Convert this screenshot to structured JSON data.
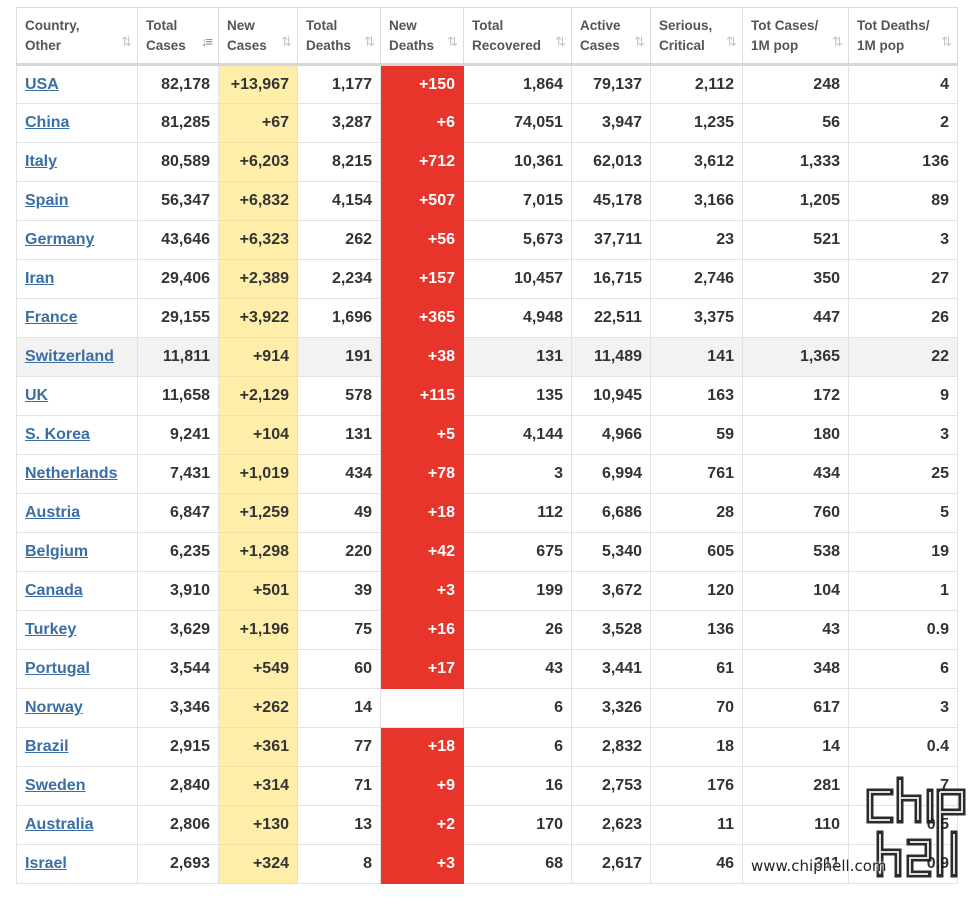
{
  "headers": [
    {
      "line1": "Country,",
      "line2": "Other",
      "sort": "none"
    },
    {
      "line1": "Total",
      "line2": "Cases",
      "sort": "active"
    },
    {
      "line1": "New",
      "line2": "Cases",
      "sort": "none"
    },
    {
      "line1": "Total",
      "line2": "Deaths",
      "sort": "none"
    },
    {
      "line1": "New",
      "line2": "Deaths",
      "sort": "none"
    },
    {
      "line1": "Total",
      "line2": "Recovered",
      "sort": "none"
    },
    {
      "line1": "Active",
      "line2": "Cases",
      "sort": "none"
    },
    {
      "line1": "Serious,",
      "line2": "Critical",
      "sort": "none"
    },
    {
      "line1": "Tot Cases/",
      "line2": "1M pop",
      "sort": "none"
    },
    {
      "line1": "Tot Deaths/",
      "line2": "1M pop",
      "sort": "none"
    }
  ],
  "rows": [
    {
      "country": "USA",
      "total_cases": "82,178",
      "new_cases": "+13,967",
      "total_deaths": "1,177",
      "new_deaths": "+150",
      "total_recovered": "1,864",
      "active_cases": "79,137",
      "serious_critical": "2,112",
      "cases_per_1m": "248",
      "deaths_per_1m": "4"
    },
    {
      "country": "China",
      "total_cases": "81,285",
      "new_cases": "+67",
      "total_deaths": "3,287",
      "new_deaths": "+6",
      "total_recovered": "74,051",
      "active_cases": "3,947",
      "serious_critical": "1,235",
      "cases_per_1m": "56",
      "deaths_per_1m": "2"
    },
    {
      "country": "Italy",
      "total_cases": "80,589",
      "new_cases": "+6,203",
      "total_deaths": "8,215",
      "new_deaths": "+712",
      "total_recovered": "10,361",
      "active_cases": "62,013",
      "serious_critical": "3,612",
      "cases_per_1m": "1,333",
      "deaths_per_1m": "136"
    },
    {
      "country": "Spain",
      "total_cases": "56,347",
      "new_cases": "+6,832",
      "total_deaths": "4,154",
      "new_deaths": "+507",
      "total_recovered": "7,015",
      "active_cases": "45,178",
      "serious_critical": "3,166",
      "cases_per_1m": "1,205",
      "deaths_per_1m": "89"
    },
    {
      "country": "Germany",
      "total_cases": "43,646",
      "new_cases": "+6,323",
      "total_deaths": "262",
      "new_deaths": "+56",
      "total_recovered": "5,673",
      "active_cases": "37,711",
      "serious_critical": "23",
      "cases_per_1m": "521",
      "deaths_per_1m": "3"
    },
    {
      "country": "Iran",
      "total_cases": "29,406",
      "new_cases": "+2,389",
      "total_deaths": "2,234",
      "new_deaths": "+157",
      "total_recovered": "10,457",
      "active_cases": "16,715",
      "serious_critical": "2,746",
      "cases_per_1m": "350",
      "deaths_per_1m": "27"
    },
    {
      "country": "France",
      "total_cases": "29,155",
      "new_cases": "+3,922",
      "total_deaths": "1,696",
      "new_deaths": "+365",
      "total_recovered": "4,948",
      "active_cases": "22,511",
      "serious_critical": "3,375",
      "cases_per_1m": "447",
      "deaths_per_1m": "26"
    },
    {
      "country": "Switzerland",
      "total_cases": "11,811",
      "new_cases": "+914",
      "total_deaths": "191",
      "new_deaths": "+38",
      "total_recovered": "131",
      "active_cases": "11,489",
      "serious_critical": "141",
      "cases_per_1m": "1,365",
      "deaths_per_1m": "22",
      "highlight": true
    },
    {
      "country": "UK",
      "total_cases": "11,658",
      "new_cases": "+2,129",
      "total_deaths": "578",
      "new_deaths": "+115",
      "total_recovered": "135",
      "active_cases": "10,945",
      "serious_critical": "163",
      "cases_per_1m": "172",
      "deaths_per_1m": "9"
    },
    {
      "country": "S. Korea",
      "total_cases": "9,241",
      "new_cases": "+104",
      "total_deaths": "131",
      "new_deaths": "+5",
      "total_recovered": "4,144",
      "active_cases": "4,966",
      "serious_critical": "59",
      "cases_per_1m": "180",
      "deaths_per_1m": "3"
    },
    {
      "country": "Netherlands",
      "total_cases": "7,431",
      "new_cases": "+1,019",
      "total_deaths": "434",
      "new_deaths": "+78",
      "total_recovered": "3",
      "active_cases": "6,994",
      "serious_critical": "761",
      "cases_per_1m": "434",
      "deaths_per_1m": "25"
    },
    {
      "country": "Austria",
      "total_cases": "6,847",
      "new_cases": "+1,259",
      "total_deaths": "49",
      "new_deaths": "+18",
      "total_recovered": "112",
      "active_cases": "6,686",
      "serious_critical": "28",
      "cases_per_1m": "760",
      "deaths_per_1m": "5"
    },
    {
      "country": "Belgium",
      "total_cases": "6,235",
      "new_cases": "+1,298",
      "total_deaths": "220",
      "new_deaths": "+42",
      "total_recovered": "675",
      "active_cases": "5,340",
      "serious_critical": "605",
      "cases_per_1m": "538",
      "deaths_per_1m": "19"
    },
    {
      "country": "Canada",
      "total_cases": "3,910",
      "new_cases": "+501",
      "total_deaths": "39",
      "new_deaths": "+3",
      "total_recovered": "199",
      "active_cases": "3,672",
      "serious_critical": "120",
      "cases_per_1m": "104",
      "deaths_per_1m": "1"
    },
    {
      "country": "Turkey",
      "total_cases": "3,629",
      "new_cases": "+1,196",
      "total_deaths": "75",
      "new_deaths": "+16",
      "total_recovered": "26",
      "active_cases": "3,528",
      "serious_critical": "136",
      "cases_per_1m": "43",
      "deaths_per_1m": "0.9"
    },
    {
      "country": "Portugal",
      "total_cases": "3,544",
      "new_cases": "+549",
      "total_deaths": "60",
      "new_deaths": "+17",
      "total_recovered": "43",
      "active_cases": "3,441",
      "serious_critical": "61",
      "cases_per_1m": "348",
      "deaths_per_1m": "6"
    },
    {
      "country": "Norway",
      "total_cases": "3,346",
      "new_cases": "+262",
      "total_deaths": "14",
      "new_deaths": "",
      "total_recovered": "6",
      "active_cases": "3,326",
      "serious_critical": "70",
      "cases_per_1m": "617",
      "deaths_per_1m": "3"
    },
    {
      "country": "Brazil",
      "total_cases": "2,915",
      "new_cases": "+361",
      "total_deaths": "77",
      "new_deaths": "+18",
      "total_recovered": "6",
      "active_cases": "2,832",
      "serious_critical": "18",
      "cases_per_1m": "14",
      "deaths_per_1m": "0.4"
    },
    {
      "country": "Sweden",
      "total_cases": "2,840",
      "new_cases": "+314",
      "total_deaths": "71",
      "new_deaths": "+9",
      "total_recovered": "16",
      "active_cases": "2,753",
      "serious_critical": "176",
      "cases_per_1m": "281",
      "deaths_per_1m": "7"
    },
    {
      "country": "Australia",
      "total_cases": "2,806",
      "new_cases": "+130",
      "total_deaths": "13",
      "new_deaths": "+2",
      "total_recovered": "170",
      "active_cases": "2,623",
      "serious_critical": "11",
      "cases_per_1m": "110",
      "deaths_per_1m": "0.5"
    },
    {
      "country": "Israel",
      "total_cases": "2,693",
      "new_cases": "+324",
      "total_deaths": "8",
      "new_deaths": "+3",
      "total_recovered": "68",
      "active_cases": "2,617",
      "serious_critical": "46",
      "cases_per_1m": "311",
      "deaths_per_1m": "0.9"
    }
  ],
  "sort_icons": {
    "inactive": "⇅",
    "active": "↓≡"
  },
  "colors": {
    "new_cases_bg": "#ffeeaa",
    "new_deaths_bg": "#e8352b",
    "link": "#3a6ea5",
    "highlight_row": "#f2f2f2"
  },
  "watermark": {
    "logo_text": "chip hell",
    "url": "www.chiphell.com"
  }
}
